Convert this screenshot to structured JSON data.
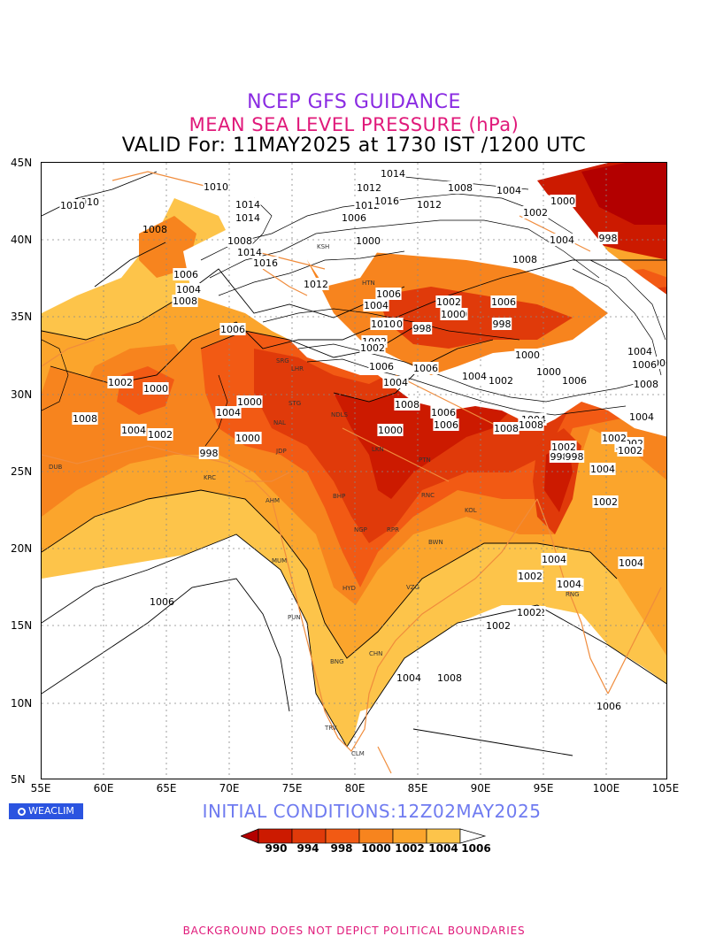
{
  "header": {
    "line1": "NCEP GFS GUIDANCE",
    "line2": "MEAN SEA LEVEL PRESSURE (hPa)",
    "line3": "VALID For: 11MAY2025 at 1730 IST /1200 UTC"
  },
  "axes": {
    "lat_labels": [
      "45N",
      "40N",
      "35N",
      "30N",
      "25N",
      "20N",
      "15N",
      "10N",
      "5N"
    ],
    "lon_labels": [
      "55E",
      "60E",
      "65E",
      "70E",
      "75E",
      "80E",
      "85E",
      "90E",
      "95E",
      "100E",
      "105E"
    ]
  },
  "logo": "WEACLIM",
  "initial_conditions": "INITIAL CONDITIONS:12Z02MAY2025",
  "legend": {
    "levels": [
      "990",
      "994",
      "998",
      "1000",
      "1002",
      "1004",
      "1006"
    ],
    "colors": [
      "#b30000",
      "#cc1a00",
      "#e03a0a",
      "#f25a14",
      "#f7841e",
      "#fba52c",
      "#fdc44a",
      "#ffffff"
    ]
  },
  "footer": "BACKGROUND DOES NOT DEPICT POLITICAL BOUNDARIES",
  "contour_labels": [
    {
      "text": "1014"
    },
    {
      "text": "1010"
    },
    {
      "text": "1010"
    },
    {
      "text": "1012"
    },
    {
      "text": "1008"
    },
    {
      "text": "1004"
    },
    {
      "text": "1000"
    },
    {
      "text": "1014"
    },
    {
      "text": "1012"
    },
    {
      "text": "1016"
    },
    {
      "text": "1012"
    },
    {
      "text": "1002"
    },
    {
      "text": "1006"
    },
    {
      "text": "1014"
    },
    {
      "text": "1000"
    },
    {
      "text": "1004"
    },
    {
      "text": "998"
    },
    {
      "text": "1008"
    },
    {
      "text": "1008"
    },
    {
      "text": "1014"
    },
    {
      "text": "1016"
    },
    {
      "text": "1006"
    },
    {
      "text": "1004"
    },
    {
      "text": "1008"
    },
    {
      "text": "1008"
    },
    {
      "text": "1006"
    },
    {
      "text": "1010"
    },
    {
      "text": "1012"
    },
    {
      "text": "1002"
    },
    {
      "text": "1006"
    },
    {
      "text": "1004"
    },
    {
      "text": "1010"
    },
    {
      "text": "1006"
    },
    {
      "text": "1002"
    },
    {
      "text": "1000"
    },
    {
      "text": "1000"
    },
    {
      "text": "998"
    },
    {
      "text": "998"
    },
    {
      "text": "1000"
    },
    {
      "text": "1006"
    },
    {
      "text": "1004"
    },
    {
      "text": "1006"
    },
    {
      "text": "1002"
    },
    {
      "text": "1000"
    },
    {
      "text": "1000"
    },
    {
      "text": "1004"
    },
    {
      "text": "1008"
    },
    {
      "text": "1004"
    },
    {
      "text": "1002"
    },
    {
      "text": "998"
    },
    {
      "text": "1000"
    },
    {
      "text": "1004"
    },
    {
      "text": "1002"
    },
    {
      "text": "1002"
    },
    {
      "text": "1006"
    },
    {
      "text": "1006"
    },
    {
      "text": "1000"
    },
    {
      "text": "1000"
    },
    {
      "text": "998"
    },
    {
      "text": "1002"
    },
    {
      "text": "1002"
    },
    {
      "text": "1004"
    },
    {
      "text": "1002"
    },
    {
      "text": "1008"
    },
    {
      "text": "1006"
    },
    {
      "text": "1004"
    },
    {
      "text": "1002"
    },
    {
      "text": "1004"
    },
    {
      "text": "1002"
    },
    {
      "text": "1004"
    },
    {
      "text": "1002"
    },
    {
      "text": "998"
    },
    {
      "text": "1004"
    },
    {
      "text": "1000"
    },
    {
      "text": "1008"
    },
    {
      "text": "1004"
    },
    {
      "text": "1006"
    },
    {
      "text": "1008"
    },
    {
      "text": "1006"
    },
    {
      "text": "1008"
    },
    {
      "text": "1002"
    },
    {
      "text": "1004"
    },
    {
      "text": "1004"
    },
    {
      "text": "1002"
    },
    {
      "text": "1004"
    },
    {
      "text": "1002"
    },
    {
      "text": "1008"
    },
    {
      "text": "1004"
    },
    {
      "text": "1002"
    },
    {
      "text": "1006"
    }
  ],
  "city_labels": [
    "HTN",
    "KSH",
    "SRG",
    "LHR",
    "STG",
    "NAL",
    "JDP",
    "NDLS",
    "LKN",
    "PTN",
    "BHP",
    "AHM",
    "NGP",
    "RPR",
    "RNC",
    "KOL",
    "BWN",
    "MUM",
    "HYD",
    "VZG",
    "PUN",
    "BNG",
    "CHN",
    "TRV",
    "CLM",
    "DUB",
    "KRC",
    "RNG"
  ],
  "thin_labels": [
    "1010",
    "1008",
    "1006"
  ]
}
